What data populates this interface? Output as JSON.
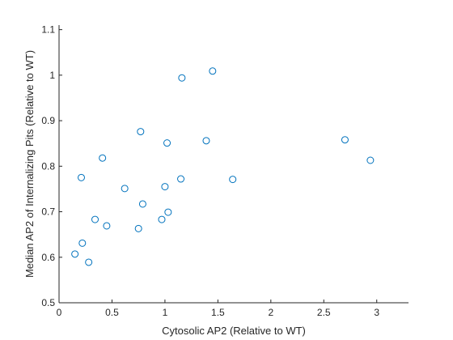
{
  "chart_data": {
    "type": "scatter",
    "xlabel": "Cytosolic AP2 (Relative to WT)",
    "ylabel": "Median AP2 of Internalizing Pits (Relative to WT)",
    "xlim": [
      0,
      3.3
    ],
    "ylim": [
      0.5,
      1.11
    ],
    "xticks": [
      "0",
      "0.5",
      "1",
      "1.5",
      "2",
      "2.5",
      "3"
    ],
    "yticks": [
      "0.5",
      "0.6",
      "0.7",
      "0.8",
      "0.9",
      "1",
      "1.1"
    ],
    "grid": false,
    "marker_color": "#0072BD",
    "axis_color": "#262626",
    "points": [
      {
        "x": 0.15,
        "y": 0.607
      },
      {
        "x": 0.22,
        "y": 0.631
      },
      {
        "x": 0.28,
        "y": 0.589
      },
      {
        "x": 0.21,
        "y": 0.775
      },
      {
        "x": 0.34,
        "y": 0.683
      },
      {
        "x": 0.41,
        "y": 0.818
      },
      {
        "x": 0.45,
        "y": 0.669
      },
      {
        "x": 0.62,
        "y": 0.751
      },
      {
        "x": 0.75,
        "y": 0.663
      },
      {
        "x": 0.77,
        "y": 0.876
      },
      {
        "x": 0.79,
        "y": 0.717
      },
      {
        "x": 0.97,
        "y": 0.683
      },
      {
        "x": 1.0,
        "y": 0.755
      },
      {
        "x": 1.02,
        "y": 0.851
      },
      {
        "x": 1.03,
        "y": 0.699
      },
      {
        "x": 1.15,
        "y": 0.772
      },
      {
        "x": 1.16,
        "y": 0.994
      },
      {
        "x": 1.39,
        "y": 0.856
      },
      {
        "x": 1.45,
        "y": 1.009
      },
      {
        "x": 1.64,
        "y": 0.771
      },
      {
        "x": 2.7,
        "y": 0.858
      },
      {
        "x": 2.94,
        "y": 0.813
      }
    ]
  }
}
